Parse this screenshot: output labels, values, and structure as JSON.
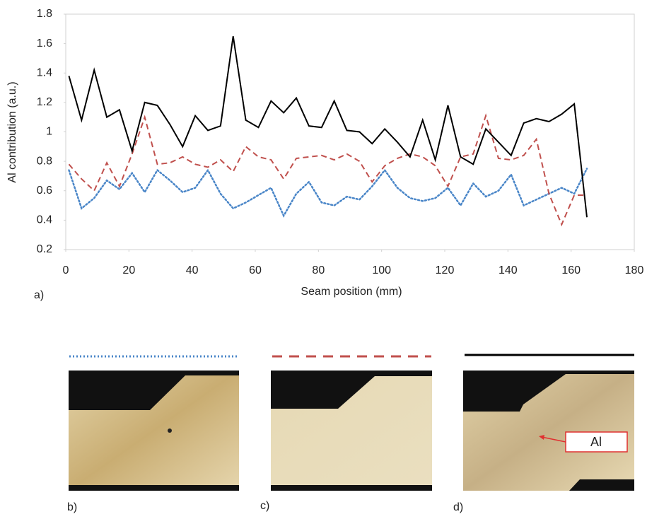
{
  "chart_data": {
    "type": "line",
    "x_label": "Seam position (mm)",
    "y_label": "Al contribution (a.u.)",
    "x": [
      1,
      5,
      9,
      13,
      17,
      21,
      25,
      29,
      33,
      37,
      41,
      45,
      49,
      53,
      57,
      61,
      65,
      69,
      73,
      77,
      81,
      85,
      89,
      93,
      97,
      101,
      105,
      109,
      113,
      117,
      121,
      125,
      129,
      133,
      137,
      141,
      145,
      149,
      153,
      157,
      161,
      165
    ],
    "series": [
      {
        "color": "#000000",
        "dash": "solid",
        "values": [
          1.38,
          1.08,
          1.42,
          1.1,
          1.15,
          0.87,
          1.2,
          1.18,
          1.05,
          0.9,
          1.11,
          1.01,
          1.04,
          1.65,
          1.08,
          1.03,
          1.21,
          1.13,
          1.23,
          1.04,
          1.03,
          1.21,
          1.01,
          1.0,
          0.92,
          1.02,
          0.93,
          0.83,
          1.08,
          0.81,
          1.18,
          0.83,
          0.78,
          1.02,
          0.93,
          0.84,
          1.06,
          1.09,
          1.07,
          1.12,
          1.19,
          0.42
        ]
      },
      {
        "color": "#c0504d",
        "dash": "dashed",
        "values": [
          0.78,
          0.68,
          0.6,
          0.79,
          0.63,
          0.85,
          1.1,
          0.78,
          0.79,
          0.83,
          0.78,
          0.76,
          0.81,
          0.73,
          0.9,
          0.83,
          0.81,
          0.68,
          0.82,
          0.83,
          0.84,
          0.81,
          0.85,
          0.8,
          0.66,
          0.77,
          0.82,
          0.85,
          0.83,
          0.77,
          0.63,
          0.83,
          0.85,
          1.11,
          0.82,
          0.81,
          0.84,
          0.95,
          0.58,
          0.37,
          0.57,
          0.57
        ]
      },
      {
        "color": "#4a86c8",
        "dash": "dotted",
        "values": [
          0.74,
          0.48,
          0.55,
          0.67,
          0.61,
          0.72,
          0.59,
          0.74,
          0.67,
          0.59,
          0.62,
          0.74,
          0.58,
          0.48,
          0.52,
          0.57,
          0.62,
          0.43,
          0.58,
          0.66,
          0.52,
          0.5,
          0.56,
          0.54,
          0.63,
          0.74,
          0.62,
          0.55,
          0.53,
          0.55,
          0.62,
          0.5,
          0.65,
          0.56,
          0.6,
          0.71,
          0.5,
          0.54,
          0.58,
          0.62,
          0.58,
          0.75
        ]
      }
    ],
    "xlim": [
      0,
      180
    ],
    "xticks": [
      0,
      20,
      40,
      60,
      80,
      100,
      120,
      140,
      160,
      180
    ],
    "ylim": [
      0.2,
      1.8
    ],
    "yticks": [
      0.2,
      0.4,
      0.6,
      0.8,
      1,
      1.2,
      1.4,
      1.6,
      1.8
    ],
    "grid": false
  },
  "panels": {
    "a": "a)",
    "b": "b)",
    "c": "c)",
    "d": "d)"
  },
  "annotation": "Al"
}
